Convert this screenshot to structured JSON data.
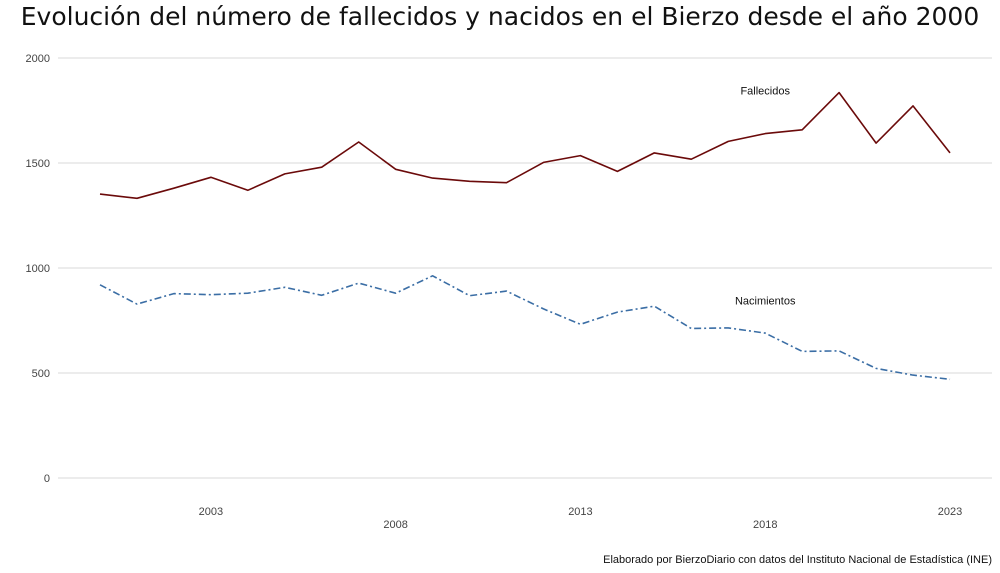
{
  "title": "Evolución del número de fallecidos y nacidos en el Bierzo desde el año 2000",
  "caption": "Elaborado por BierzoDiario con datos del Instituto Nacional de Estadística (INE)",
  "colors": {
    "fallecidos": "#6b0a0a",
    "nacimientos": "#3b6ea5",
    "grid": "#d9d9d9"
  },
  "chart_data": {
    "type": "line",
    "x": [
      2000,
      2001,
      2002,
      2003,
      2004,
      2005,
      2006,
      2007,
      2008,
      2009,
      2010,
      2011,
      2012,
      2013,
      2014,
      2015,
      2016,
      2017,
      2018,
      2019,
      2020,
      2021,
      2022,
      2023
    ],
    "series": [
      {
        "name": "Fallecidos",
        "style": "solid",
        "color": "#6b0a0a",
        "values": [
          1352,
          1332,
          1380,
          1432,
          1370,
          1448,
          1480,
          1600,
          1470,
          1428,
          1413,
          1406,
          1503,
          1535,
          1460,
          1548,
          1518,
          1603,
          1640,
          1658,
          1835,
          1595,
          1772,
          1548
        ]
      },
      {
        "name": "Nacimientos",
        "style": "dash-dot",
        "color": "#3b6ea5",
        "values": [
          920,
          828,
          878,
          873,
          880,
          908,
          870,
          928,
          880,
          963,
          868,
          890,
          805,
          732,
          790,
          818,
          712,
          715,
          690,
          603,
          605,
          522,
          490,
          470
        ]
      }
    ],
    "ylim": [
      0,
      2000
    ],
    "yticks": [
      "0",
      "500",
      "1000",
      "1500",
      "2000"
    ],
    "xticks": [
      {
        "value": 2003,
        "label": "2003",
        "row": 1
      },
      {
        "value": 2008,
        "label": "2008",
        "row": 2
      },
      {
        "value": 2013,
        "label": "2013",
        "row": 1
      },
      {
        "value": 2018,
        "label": "2018",
        "row": 2
      },
      {
        "value": 2023,
        "label": "2023",
        "row": 1
      }
    ],
    "annotations": [
      {
        "text": "Fallecidos",
        "x": 2018,
        "y": 1845
      },
      {
        "text": "Nacimientos",
        "x": 2018,
        "y": 845
      }
    ],
    "grid": true,
    "legend": "none (direct labels)"
  }
}
